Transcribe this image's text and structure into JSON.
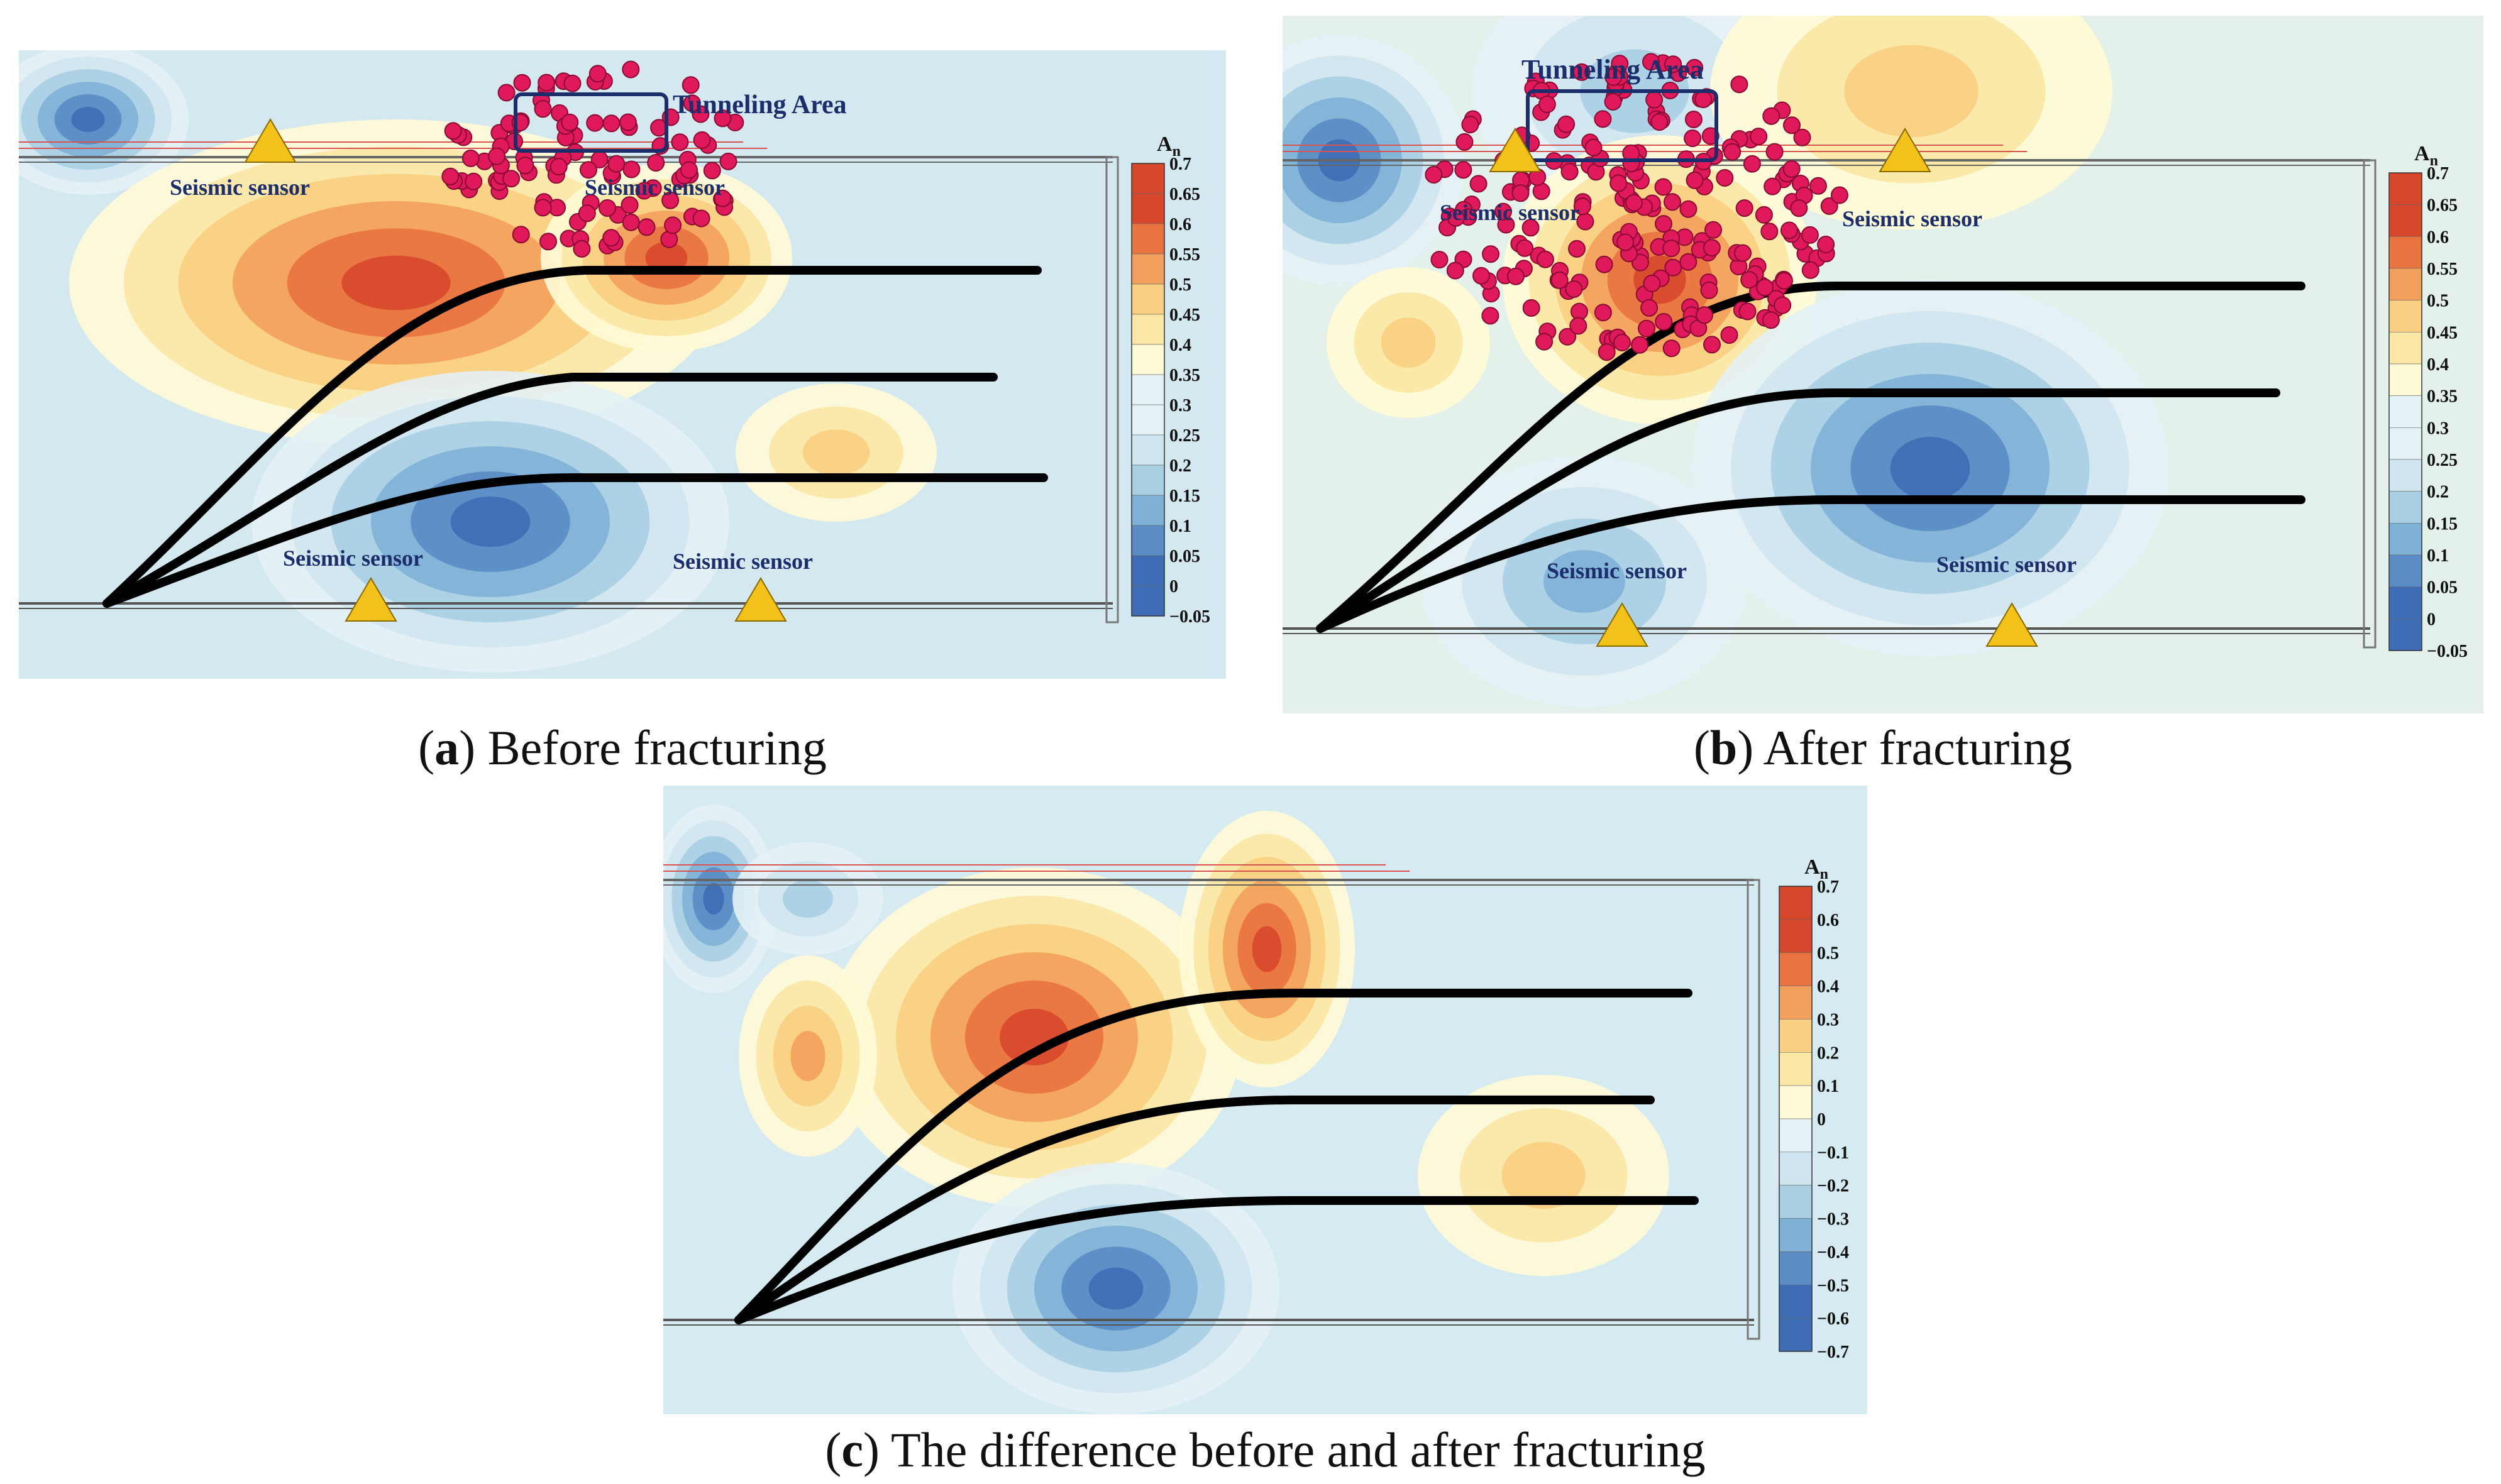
{
  "panels": [
    {
      "id": "a",
      "caption_letter": "a",
      "caption_text": " Before fracturing",
      "colorbar_title": "A",
      "colorbar_sub": "n",
      "colorbar_ticks": [
        "0.7",
        "0.65",
        "0.6",
        "0.55",
        "0.5",
        "0.45",
        "0.4",
        "0.35",
        "0.3",
        "0.25",
        "0.2",
        "0.15",
        "0.1",
        "0.05",
        "0",
        "−0.05"
      ],
      "labels": {
        "tunneling_area": "Tunneling Area",
        "sensor_top_left": "Seismic sensor",
        "sensor_top_right": "Seismic sensor",
        "sensor_bottom_left": "Seismic sensor",
        "sensor_bottom_right": "Seismic sensor"
      }
    },
    {
      "id": "b",
      "caption_letter": "b",
      "caption_text": " After fracturing",
      "colorbar_title": "A",
      "colorbar_sub": "n",
      "colorbar_ticks": [
        "0.7",
        "0.65",
        "0.6",
        "0.55",
        "0.5",
        "0.45",
        "0.4",
        "0.35",
        "0.3",
        "0.25",
        "0.2",
        "0.15",
        "0.1",
        "0.05",
        "0",
        "−0.05"
      ],
      "labels": {
        "tunneling_area": "Tunneling Area",
        "sensor_top_left": "Seismic sensor",
        "sensor_top_right": "Seismic sensor",
        "sensor_bottom_left": "Seismic sensor",
        "sensor_bottom_right": "Seismic sensor"
      }
    },
    {
      "id": "c",
      "caption_letter": "c",
      "caption_text": " The difference before and after fracturing",
      "colorbar_title": "A",
      "colorbar_sub": "n",
      "colorbar_ticks": [
        "0.7",
        "0.6",
        "0.5",
        "0.4",
        "0.3",
        "0.2",
        "0.1",
        "0",
        "−0.1",
        "−0.2",
        "−0.3",
        "−0.4",
        "−0.5",
        "−0.6",
        "−0.7"
      ]
    }
  ],
  "colors": {
    "high": "#d7472b",
    "mid_high": "#f3a05c",
    "mid": "#fbe7a5",
    "mid_low": "#cfe6f0",
    "low": "#3e6db5",
    "event_point": "#e0195a",
    "sensor": "#f3c21a",
    "label_text": "#1b2e6b"
  }
}
